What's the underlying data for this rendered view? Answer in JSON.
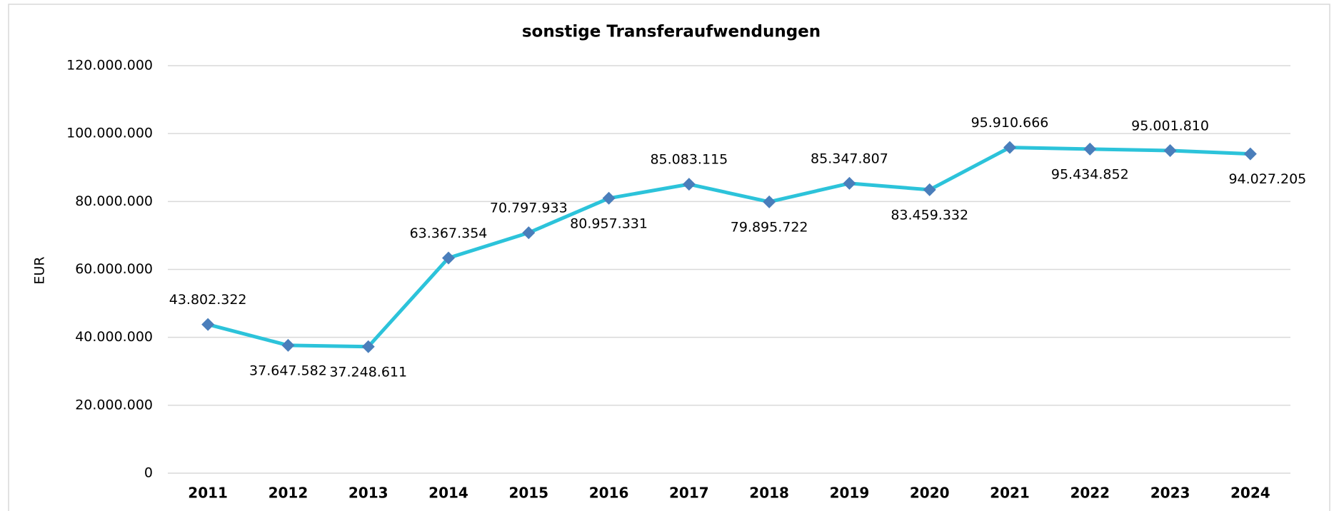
{
  "chart_data": {
    "type": "line",
    "title": "sonstige Transferaufwendungen",
    "y_label": "EUR",
    "categories": [
      "2011",
      "2012",
      "2013",
      "2014",
      "2015",
      "2016",
      "2017",
      "2018",
      "2019",
      "2020",
      "2021",
      "2022",
      "2023",
      "2024"
    ],
    "series": [
      {
        "name": "sonstige Transferaufwendungen",
        "color": "#2cc3da",
        "marker_color": "#4a7ebb",
        "values": [
          43802322,
          37647582,
          37248611,
          63367354,
          70797933,
          80957331,
          85083115,
          79895722,
          85347807,
          83459332,
          95910666,
          95434852,
          95001810,
          94027205
        ],
        "value_labels": [
          "43.802.322",
          "37.647.582",
          "37.248.611",
          "63.367.354",
          "70.797.933",
          "80.957.331",
          "85.083.115",
          "79.895.722",
          "85.347.807",
          "83.459.332",
          "95.910.666",
          "95.434.852",
          "95.001.810",
          "94.027.205"
        ]
      }
    ],
    "ylim": [
      0,
      120000000
    ],
    "yticks": [
      0,
      {
        "value": 20000000,
        "label": "20.000.000"
      },
      {
        "value": 40000000,
        "label": "40.000.000"
      },
      {
        "value": 60000000,
        "label": "60.000.000"
      },
      {
        "value": 80000000,
        "label": "80.000.000"
      },
      {
        "value": 100000000,
        "label": "100.000.000"
      },
      {
        "value": 120000000,
        "label": "120.000.000"
      }
    ],
    "grid": true
  }
}
